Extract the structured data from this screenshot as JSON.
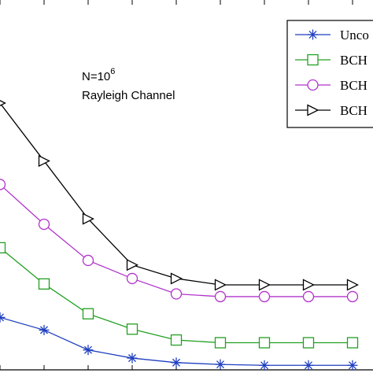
{
  "chart_data": {
    "type": "line",
    "title": "",
    "xlabel": "",
    "ylabel": "",
    "grid": false,
    "legend_placement": "top-right",
    "x": [
      0,
      1,
      2,
      3,
      4,
      5,
      6,
      7,
      8
    ],
    "series": [
      {
        "name": "Unco",
        "color": "#1f3fbf",
        "marker": "asterisk",
        "values": [
          0.58,
          0.44,
          0.22,
          0.13,
          0.08,
          0.06,
          0.05,
          0.05,
          0.05
        ]
      },
      {
        "name": "BCH",
        "color": "#22a022",
        "marker": "square",
        "values": [
          1.35,
          0.95,
          0.62,
          0.45,
          0.33,
          0.3,
          0.3,
          0.3,
          0.3
        ]
      },
      {
        "name": "BCH",
        "color": "#b233cc",
        "marker": "circle",
        "values": [
          2.05,
          1.61,
          1.21,
          1.01,
          0.84,
          0.81,
          0.81,
          0.81,
          0.81
        ]
      },
      {
        "name": "BCH",
        "color": "#000000",
        "marker": "triangle-right",
        "values": [
          2.95,
          2.31,
          1.67,
          1.16,
          1.01,
          0.94,
          0.94,
          0.94,
          0.94
        ]
      }
    ]
  },
  "annotation": {
    "n_base": "N=10",
    "n_exp": "6",
    "channel": "Rayleigh Channel"
  }
}
